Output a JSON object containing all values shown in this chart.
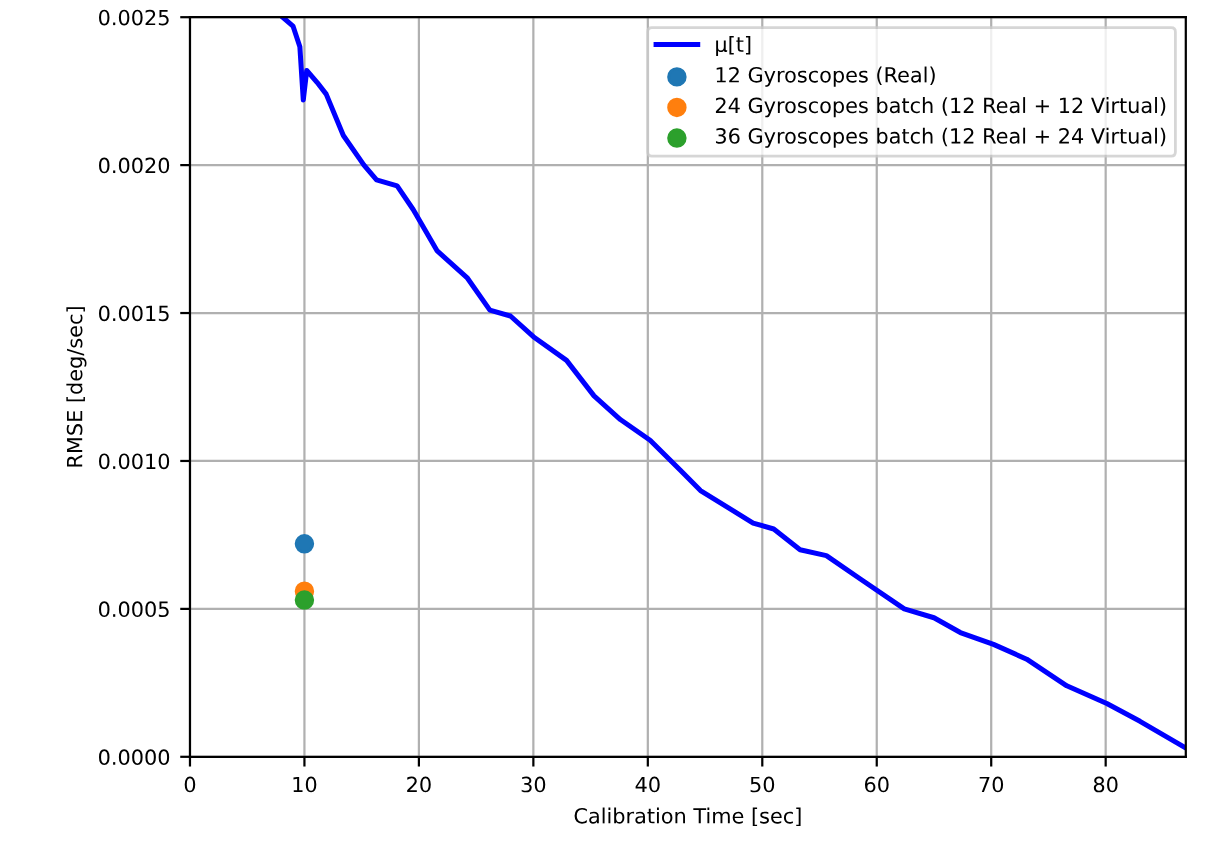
{
  "chart_data": {
    "type": "line",
    "xlabel": "Calibration Time [sec]",
    "ylabel": "RMSE [deg/sec]",
    "xlim": [
      0,
      87
    ],
    "xticks": [
      0,
      10,
      20,
      30,
      40,
      50,
      60,
      70,
      80
    ],
    "ylim": [
      0,
      0.0025
    ],
    "yticks": [
      {
        "value": 0,
        "label": "0.0000"
      },
      {
        "value": 0.0005,
        "label": "0.0005"
      },
      {
        "value": 0.001,
        "label": "0.0010"
      },
      {
        "value": 0.0015,
        "label": "0.0015"
      },
      {
        "value": 0.002,
        "label": "0.0020"
      },
      {
        "value": 0.0025,
        "label": "0.0025"
      }
    ],
    "grid": true,
    "legend": "top right",
    "series": [
      {
        "name": "μ[t]",
        "color": "#0000ff",
        "marker": "none",
        "x": [
          8.1,
          9.0,
          9.6,
          9.9,
          10.2,
          11.1,
          11.9,
          13.4,
          15.2,
          16.3,
          18.1,
          19.5,
          21.6,
          24.2,
          26.2,
          28.0,
          30.0,
          32.9,
          35.3,
          37.6,
          40.2,
          42.8,
          44.6,
          49.2,
          51.0,
          53.3,
          55.6,
          58.6,
          62.4,
          65.0,
          67.3,
          70.2,
          73.1,
          76.6,
          80.1,
          83.0,
          87.0
        ],
        "values": [
          0.0025,
          0.00247,
          0.0024,
          0.00222,
          0.00232,
          0.00228,
          0.00224,
          0.0021,
          0.002,
          0.00195,
          0.00193,
          0.00185,
          0.00171,
          0.00162,
          0.00151,
          0.00149,
          0.00142,
          0.00134,
          0.00122,
          0.00114,
          0.00107,
          0.00097,
          0.0009,
          0.00079,
          0.00077,
          0.0007,
          0.00068,
          0.0006,
          0.0005,
          0.00047,
          0.00042,
          0.00038,
          0.00033,
          0.00024,
          0.00018,
          0.00012,
          3e-05
        ]
      },
      {
        "name": "12 Gyroscopes (Real)",
        "type": "scatter",
        "color": "#1f77b4",
        "marker": "circle",
        "x": [
          10
        ],
        "values": [
          0.00072
        ]
      },
      {
        "name": "24 Gyroscopes batch (12 Real + 12 Virtual)",
        "type": "scatter",
        "color": "#ff7f0e",
        "marker": "circle",
        "x": [
          10
        ],
        "values": [
          0.00056
        ]
      },
      {
        "name": "36 Gyroscopes batch (12 Real + 24 Virtual)",
        "type": "scatter",
        "color": "#2ca02c",
        "marker": "circle",
        "x": [
          10
        ],
        "values": [
          0.00053
        ]
      }
    ]
  }
}
